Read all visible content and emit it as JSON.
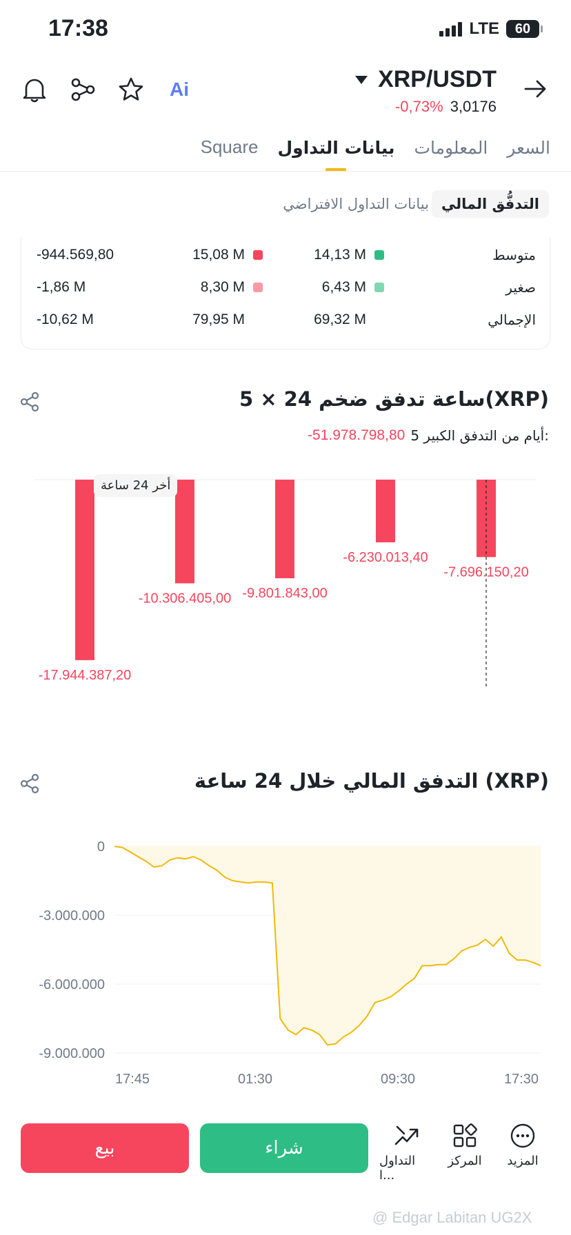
{
  "status": {
    "time": "17:38",
    "network": "LTE",
    "battery": "60"
  },
  "header": {
    "pair": "XRP/USDT",
    "change": "-0,73%",
    "price": "3,0176",
    "ai_label": "Ai"
  },
  "tabs": [
    {
      "label": "السعر",
      "active": false
    },
    {
      "label": "المعلومات",
      "active": false
    },
    {
      "label": "بيانات التداول",
      "active": true
    },
    {
      "label": "Square",
      "active": false
    }
  ],
  "segment": {
    "active": "التدفُّق المالي",
    "inactive": "بيانات التداول الافتراضي"
  },
  "flow_table": {
    "rows": [
      {
        "label": "متوسط",
        "inflow": "14,13 M",
        "outflow": "15,08 M",
        "net": "-944.569,80"
      },
      {
        "label": "صغير",
        "inflow": "6,43 M",
        "outflow": "8,30 M",
        "net": "-1,86 M"
      },
      {
        "label": "الإجمالي",
        "inflow": "69,32 M",
        "outflow": "79,95 M",
        "net": "-10,62 M"
      }
    ]
  },
  "large_flow": {
    "title": "5 × 24 ساعة تدفق ضخم(XRP)",
    "subtitle_label": "5 أيام من التدفق الكبير:",
    "subtitle_value": "-51.978.798,80",
    "tooltip": "أخر 24 ساعة"
  },
  "flow_24h": {
    "title": "التدفق المالي خلال 24 ساعة (XRP)"
  },
  "chart_data": [
    {
      "type": "bar",
      "title": "5 × 24 ساعة تدفق ضخم(XRP)",
      "values": [
        -17944387.2,
        -10306405.0,
        -9801843.0,
        -6230013.4,
        -7696150.2
      ],
      "labels": [
        "-17.944.387,20",
        "-10.306.405,00",
        "-9.801.843,00",
        "-6.230.013,40",
        "-7.696.150,20"
      ],
      "ylim": [
        -18500000,
        0
      ],
      "color": "#f6465d"
    },
    {
      "type": "area",
      "title": "التدفق المالي خلال 24 ساعة (XRP)",
      "x_ticks": [
        "17:45",
        "01:30",
        "09:30",
        "17:30"
      ],
      "y_ticks": [
        "0",
        "-3.000.000",
        "-6.000.000",
        "-9.000.000"
      ],
      "y_tick_values": [
        0,
        -3000000,
        -6000000,
        -9000000
      ],
      "ylim": [
        -9500000,
        0
      ],
      "color": "#f0b90b",
      "values": [
        0,
        -50000,
        -250000,
        -450000,
        -650000,
        -900000,
        -850000,
        -600000,
        -500000,
        -550000,
        -450000,
        -600000,
        -850000,
        -1050000,
        -1350000,
        -1500000,
        -1550000,
        -1600000,
        -1550000,
        -1550000,
        -1600000,
        -7500000,
        -8000000,
        -8200000,
        -7900000,
        -8000000,
        -8200000,
        -8650000,
        -8600000,
        -8300000,
        -8100000,
        -7800000,
        -7400000,
        -6800000,
        -6700000,
        -6550000,
        -6300000,
        -6000000,
        -5750000,
        -5200000,
        -5200000,
        -5150000,
        -5150000,
        -4900000,
        -4550000,
        -4400000,
        -4300000,
        -4050000,
        -4350000,
        -3950000,
        -4650000,
        -4950000,
        -4950000,
        -5050000,
        -5200000
      ]
    }
  ],
  "bottom_bar": {
    "sell": "بيع",
    "buy": "شراء",
    "trade": "التداول ا...",
    "center": "المركز",
    "more": "المزيد"
  },
  "watermark": "@ Edgar Labitan UG2X",
  "colors": {
    "accent": "#f0b90b",
    "red": "#f6465d",
    "green": "#2ebd85"
  }
}
